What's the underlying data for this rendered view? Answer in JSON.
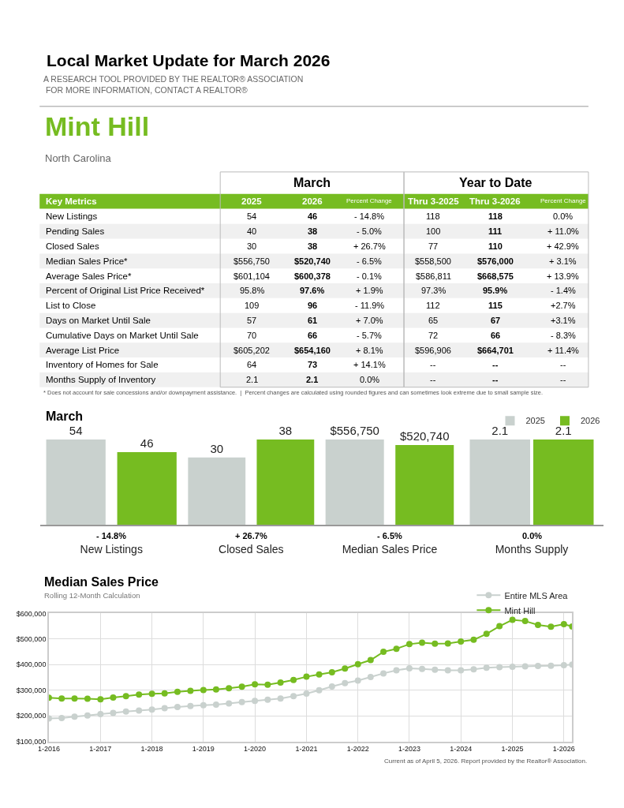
{
  "chart_data": [
    {
      "type": "other",
      "title": "Local Market Update for March 2026",
      "subtitle": "A RESEARCH TOOL PROVIDED BY THE REALTOR® ASSOCIATION\n FOR MORE INFORMATION, CONTACT A REALTOR®",
      "annotations": [
        "Mint Hill",
        "North Carolina"
      ]
    },
    {
      "type": "heatmap",
      "ylabel": "Key Metrics",
      "categories": [
        "2025",
        "2026",
        "Percent Change",
        "Thru 3-2025",
        "Thru 3-2026",
        "Percent Change"
      ],
      "y_categories": [
        "New Listings",
        "Pending Sales",
        "Closed Sales",
        "Median Sales Price*",
        "Average Sales Price*",
        "Percent of Original List Price Received*",
        "List to Close",
        "Days on Market Until Sale",
        "Cumulative Days on Market Until Sale",
        "Average List Price",
        "Inventory of Homes for Sale",
        "Months Supply of Inventory"
      ],
      "cells": [
        [
          null,
          null,
          null,
          null,
          null,
          null
        ],
        [
          null,
          null,
          null,
          null,
          null,
          null
        ],
        [
          null,
          null,
          null,
          null,
          null,
          null
        ],
        [
          null,
          null,
          null,
          null,
          null,
          null
        ],
        [
          null,
          null,
          null,
          null,
          null,
          null
        ],
        [
          null,
          null,
          null,
          null,
          null,
          null
        ],
        [
          null,
          null,
          null,
          null,
          null,
          null
        ],
        [
          null,
          null,
          null,
          null,
          null,
          null
        ],
        [
          null,
          null,
          null,
          null,
          null,
          null
        ],
        [
          null,
          null,
          null,
          null,
          null,
          null
        ],
        [
          null,
          null,
          null,
          null,
          null,
          null
        ],
        [
          null,
          null,
          null,
          null,
          null,
          null
        ]
      ],
      "cell_labels": [
        [
          "54",
          "46",
          "- 14.8%",
          "118",
          "118",
          "0.0%"
        ],
        [
          "40",
          "38",
          "- 5.0%",
          "100",
          "111",
          "+ 11.0%"
        ],
        [
          "30",
          "38",
          "+ 26.7%",
          "77",
          "110",
          "+ 42.9%"
        ],
        [
          "$556,750",
          "$520,740",
          "- 6.5%",
          "$558,500",
          "$576,000",
          "+ 3.1%"
        ],
        [
          "$601,104",
          "$600,378",
          "- 0.1%",
          "$586,811",
          "$668,575",
          "+ 13.9%"
        ],
        [
          "95.8%",
          "97.6%",
          "+ 1.9%",
          "97.3%",
          "95.9%",
          "- 1.4%"
        ],
        [
          "109",
          "96",
          "- 11.9%",
          "112",
          "115",
          "+2.7%"
        ],
        [
          "57",
          "61",
          "+ 7.0%",
          "65",
          "67",
          "+3.1%"
        ],
        [
          "70",
          "66",
          "- 5.7%",
          "72",
          "66",
          "- 8.3%"
        ],
        [
          "$605,202",
          "$654,160",
          "+ 8.1%",
          "$596,906",
          "$664,701",
          "+ 11.4%"
        ],
        [
          "64",
          "73",
          "+ 14.1%",
          "--",
          "--",
          "--"
        ],
        [
          "2.1",
          "2.1",
          "0.0%",
          "--",
          "--",
          "--"
        ]
      ],
      "annotations": [
        "March",
        "Year to Date",
        "* Does not account for sale concessions and/or downpayment assistance.  |  Percent changes are calculated using rounded figures and can sometimes look extreme due to small sample size."
      ]
    },
    {
      "type": "bar",
      "title": "March",
      "xlabel": "New Listings",
      "categories": [
        null,
        null
      ],
      "data_labels": true,
      "annotations": [
        "- 14.8%"
      ],
      "series": [
        {
          "colors": [
            "#c9d1ce",
            "#76bc21"
          ],
          "values": [
            54,
            46
          ]
        }
      ]
    },
    {
      "type": "bar",
      "xlabel": "Closed Sales",
      "categories": [
        null,
        null
      ],
      "data_labels": true,
      "annotations": [
        "+ 26.7%"
      ],
      "series": [
        {
          "colors": [
            "#c9d1ce",
            "#76bc21"
          ],
          "values": [
            30,
            38
          ]
        }
      ]
    },
    {
      "type": "bar",
      "xlabel": "Median Sales Price",
      "categories": [
        null,
        null
      ],
      "annotations": [
        "- 6.5%"
      ],
      "series": [
        {
          "colors": [
            "#c9d1ce",
            "#76bc21"
          ],
          "values": [
            556750,
            520740
          ],
          "value_labels": [
            "$556,750",
            "$520,740"
          ]
        }
      ]
    },
    {
      "type": "bar",
      "xlabel": "Months Supply",
      "categories": [
        null
      ],
      "data_labels": true,
      "annotations": [
        "0.0%"
      ],
      "legend": "top right",
      "series": [
        {
          "name": "2025",
          "color": "#c9d1ce",
          "values": [
            2.1
          ]
        },
        {
          "name": "2026",
          "color": "#76bc21",
          "values": [
            2.1
          ]
        }
      ]
    },
    {
      "type": "line",
      "title": "Median Sales Price",
      "subtitle": "Rolling 12-Month Calculation",
      "marker": "circle",
      "grid": true,
      "legend": "top right",
      "x": [
        "2016-01",
        "2016-04",
        "2016-07",
        "2016-10",
        "2017-01",
        "2017-04",
        "2017-07",
        "2017-10",
        "2018-01",
        "2018-04",
        "2018-07",
        "2018-10",
        "2019-01",
        "2019-04",
        "2019-07",
        "2019-10",
        "2020-01",
        "2020-04",
        "2020-07",
        "2020-10",
        "2021-01",
        "2021-04",
        "2021-07",
        "2021-10",
        "2022-01",
        "2022-04",
        "2022-07",
        "2022-10",
        "2023-01",
        "2023-04",
        "2023-07",
        "2023-10",
        "2024-01",
        "2024-04",
        "2024-07",
        "2024-10",
        "2025-01",
        "2025-04",
        "2025-07",
        "2025-10",
        "2026-01",
        "2026-03"
      ],
      "xlim": [
        "2016-01",
        "2026-03"
      ],
      "xticks": [
        {
          "value": "2016-01",
          "label": "1-2016"
        },
        {
          "value": "2017-01",
          "label": "1-2017"
        },
        {
          "value": "2018-01",
          "label": "1-2018"
        },
        {
          "value": "2019-01",
          "label": "1-2019"
        },
        {
          "value": "2020-01",
          "label": "1-2020"
        },
        {
          "value": "2021-01",
          "label": "1-2021"
        },
        {
          "value": "2022-01",
          "label": "1-2022"
        },
        {
          "value": "2023-01",
          "label": "1-2023"
        },
        {
          "value": "2024-01",
          "label": "1-2024"
        },
        {
          "value": "2025-01",
          "label": "1-2025"
        },
        {
          "value": "2026-01",
          "label": "1-2026"
        }
      ],
      "ylim": [
        100000,
        600000
      ],
      "yticks": [
        {
          "value": 100000,
          "label": "$100,000"
        },
        {
          "value": 200000,
          "label": "$200,000"
        },
        {
          "value": 300000,
          "label": "$300,000"
        },
        {
          "value": 400000,
          "label": "$400,000"
        },
        {
          "value": 500000,
          "label": "$500,000"
        },
        {
          "value": 600000,
          "label": "$600,000"
        }
      ],
      "series": [
        {
          "name": "Entire MLS Area",
          "color": "#c9d1ce",
          "values": [
            190000,
            192000,
            197000,
            202000,
            207000,
            212000,
            217000,
            221000,
            225000,
            230000,
            235000,
            239000,
            242000,
            244000,
            249000,
            254000,
            259000,
            263000,
            268000,
            277000,
            287000,
            300000,
            315000,
            328000,
            338000,
            352000,
            366000,
            378000,
            386000,
            383000,
            380000,
            378000,
            378000,
            382000,
            388000,
            390000,
            392000,
            393000,
            395000,
            396000,
            398000,
            400000
          ]
        },
        {
          "name": "Mint Hill",
          "color": "#76bc21",
          "values": [
            271000,
            268000,
            268000,
            267000,
            265000,
            272000,
            277000,
            283000,
            286000,
            288000,
            294000,
            298000,
            301000,
            303000,
            308000,
            314000,
            323000,
            322000,
            330000,
            340000,
            353000,
            362000,
            370000,
            385000,
            402000,
            418000,
            450000,
            462000,
            480000,
            486000,
            482000,
            483000,
            490000,
            497000,
            520000,
            550000,
            575000,
            570000,
            555000,
            548000,
            558000,
            549000
          ]
        }
      ],
      "annotations": [
        "Current as of April 5, 2026. Report provided by the Realtor® Association."
      ]
    }
  ]
}
